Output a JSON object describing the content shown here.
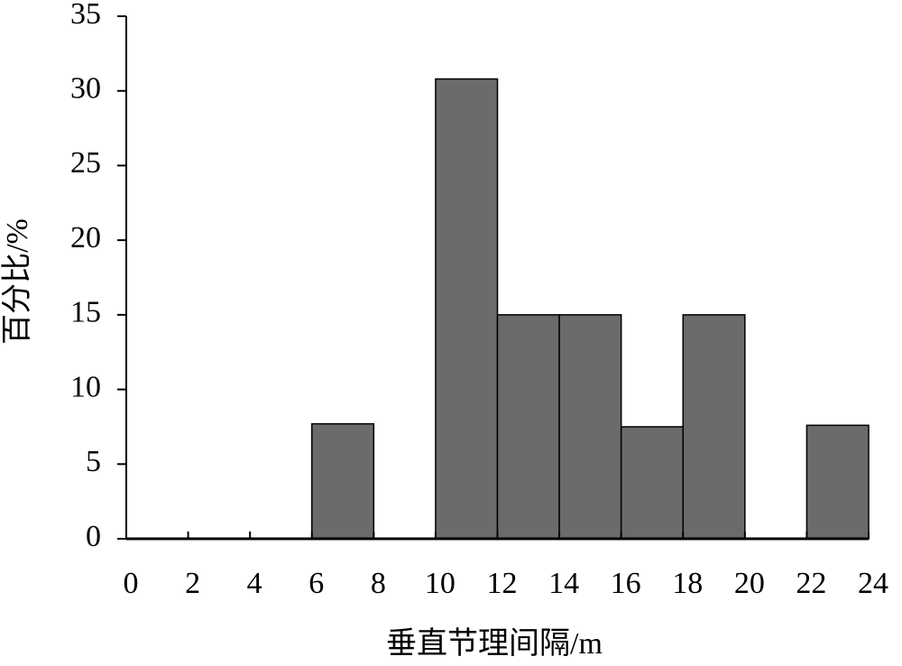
{
  "chart_data": {
    "type": "histogram",
    "xlabel": "垂直节理间隔/m",
    "ylabel": "百分比/%",
    "bins": [
      0,
      2,
      4,
      6,
      8,
      10,
      12,
      14,
      16,
      18,
      20,
      22,
      24
    ],
    "values": [
      0,
      0,
      0,
      7.7,
      0,
      30.8,
      15,
      15,
      7.5,
      15,
      0,
      7.6
    ],
    "color": "#6b6b6b",
    "xlim": [
      0,
      24
    ],
    "xticks": [
      0,
      2,
      4,
      6,
      8,
      10,
      12,
      14,
      16,
      18,
      20,
      22,
      24
    ],
    "ylim": [
      0,
      35
    ],
    "yticks": [
      0,
      5,
      10,
      15,
      20,
      25,
      30,
      35
    ]
  }
}
